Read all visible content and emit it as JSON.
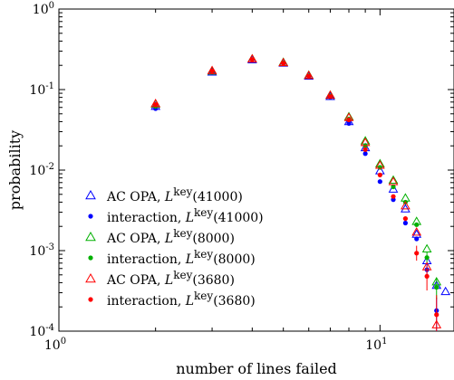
{
  "chart_data": {
    "type": "scatter",
    "xscale": "log",
    "yscale": "log",
    "xlabel": "number of lines failed",
    "ylabel": "probability",
    "xlim": [
      1,
      17
    ],
    "ylim": [
      0.0001,
      1
    ],
    "grid": false,
    "legend_position": "bottom-left",
    "xticks": [
      {
        "value": 1,
        "base": "10",
        "exp": "0"
      },
      {
        "value": 10,
        "base": "10",
        "exp": "1"
      }
    ],
    "yticks": [
      {
        "value": 1,
        "base": "10",
        "exp": "0"
      },
      {
        "value": 0.1,
        "base": "10",
        "exp": "-1"
      },
      {
        "value": 0.01,
        "base": "10",
        "exp": "-2"
      },
      {
        "value": 0.001,
        "base": "10",
        "exp": "-3"
      },
      {
        "value": 0.0001,
        "base": "10",
        "exp": "-4"
      }
    ],
    "series": [
      {
        "name_prefix": "AC OPA, ",
        "name_script": "L",
        "name_sup": "key",
        "name_arg": "(41000)",
        "marker": "triangle",
        "color": "#0000ff",
        "points": [
          [
            2,
            0.062
          ],
          [
            3,
            0.165
          ],
          [
            4,
            0.235
          ],
          [
            5,
            0.213
          ],
          [
            6,
            0.147
          ],
          [
            7,
            0.082
          ],
          [
            8,
            0.04
          ],
          [
            9,
            0.019
          ],
          [
            10,
            0.0098
          ],
          [
            11,
            0.0058
          ],
          [
            12,
            0.0033
          ],
          [
            13,
            0.0016
          ],
          [
            14,
            0.00075
          ],
          [
            15,
            0.00037
          ],
          [
            16,
            0.00031
          ]
        ]
      },
      {
        "name_prefix": "interaction, ",
        "name_script": "L",
        "name_sup": "key",
        "name_arg": "(41000)",
        "marker": "dot",
        "color": "#0000ff",
        "points": [
          [
            2,
            0.058
          ],
          [
            3,
            0.165
          ],
          [
            4,
            0.235
          ],
          [
            5,
            0.212
          ],
          [
            6,
            0.146
          ],
          [
            7,
            0.081
          ],
          [
            8,
            0.038
          ],
          [
            9,
            0.016
          ],
          [
            10,
            0.0072
          ],
          [
            11,
            0.0043
          ],
          [
            12,
            0.0022
          ],
          [
            13,
            0.0014
          ],
          [
            14,
            0.00058
          ],
          [
            15,
            0.00018
          ]
        ],
        "errors": [
          [
            14,
            0.00045,
            0.00072
          ],
          [
            15,
            0.0001,
            0.00026
          ]
        ]
      },
      {
        "name_prefix": "AC OPA, ",
        "name_script": "L",
        "name_sup": "key",
        "name_arg": "(8000)",
        "marker": "triangle",
        "color": "#00b000",
        "points": [
          [
            2,
            0.066
          ],
          [
            3,
            0.17
          ],
          [
            4,
            0.24
          ],
          [
            5,
            0.218
          ],
          [
            6,
            0.151
          ],
          [
            7,
            0.085
          ],
          [
            8,
            0.046
          ],
          [
            9,
            0.023
          ],
          [
            10,
            0.012
          ],
          [
            11,
            0.0075
          ],
          [
            12,
            0.0045
          ],
          [
            13,
            0.0023
          ],
          [
            14,
            0.00105
          ],
          [
            15,
            0.00041
          ]
        ]
      },
      {
        "name_prefix": "interaction, ",
        "name_script": "L",
        "name_sup": "key",
        "name_arg": "(8000)",
        "marker": "dot",
        "color": "#00b000",
        "points": [
          [
            2,
            0.062
          ],
          [
            3,
            0.168
          ],
          [
            4,
            0.236
          ],
          [
            5,
            0.215
          ],
          [
            6,
            0.148
          ],
          [
            7,
            0.083
          ],
          [
            8,
            0.043
          ],
          [
            9,
            0.02
          ],
          [
            10,
            0.0108
          ],
          [
            11,
            0.0062
          ],
          [
            12,
            0.004
          ],
          [
            13,
            0.0021
          ],
          [
            14,
            0.00082
          ],
          [
            15,
            0.00035
          ]
        ],
        "errors": [
          [
            14,
            0.0007,
            0.00095
          ],
          [
            15,
            0.00025,
            0.00045
          ]
        ]
      },
      {
        "name_prefix": "AC OPA, ",
        "name_script": "L",
        "name_sup": "key",
        "name_arg": "(3680)",
        "marker": "triangle",
        "color": "#ff0000",
        "points": [
          [
            2,
            0.067
          ],
          [
            3,
            0.172
          ],
          [
            4,
            0.24
          ],
          [
            5,
            0.216
          ],
          [
            6,
            0.15
          ],
          [
            7,
            0.085
          ],
          [
            8,
            0.045
          ],
          [
            9,
            0.022
          ],
          [
            10,
            0.0115
          ],
          [
            11,
            0.0072
          ],
          [
            12,
            0.0036
          ],
          [
            13,
            0.0017
          ],
          [
            14,
            0.00063
          ],
          [
            15,
            0.00012
          ]
        ]
      },
      {
        "name_prefix": "interaction, ",
        "name_script": "L",
        "name_sup": "key",
        "name_arg": "(3680)",
        "marker": "dot",
        "color": "#ff0000",
        "points": [
          [
            2,
            0.065
          ],
          [
            3,
            0.17
          ],
          [
            4,
            0.236
          ],
          [
            5,
            0.212
          ],
          [
            6,
            0.146
          ],
          [
            7,
            0.082
          ],
          [
            8,
            0.042
          ],
          [
            9,
            0.018
          ],
          [
            10,
            0.0087
          ],
          [
            11,
            0.0047
          ],
          [
            12,
            0.0025
          ],
          [
            13,
            0.00093
          ],
          [
            14,
            0.00048
          ],
          [
            15,
            0.00016
          ]
        ],
        "errors": [
          [
            13,
            0.00075,
            0.00115
          ],
          [
            14,
            0.00032,
            0.00065
          ],
          [
            15,
            0.0001,
            0.00028
          ]
        ]
      }
    ]
  }
}
